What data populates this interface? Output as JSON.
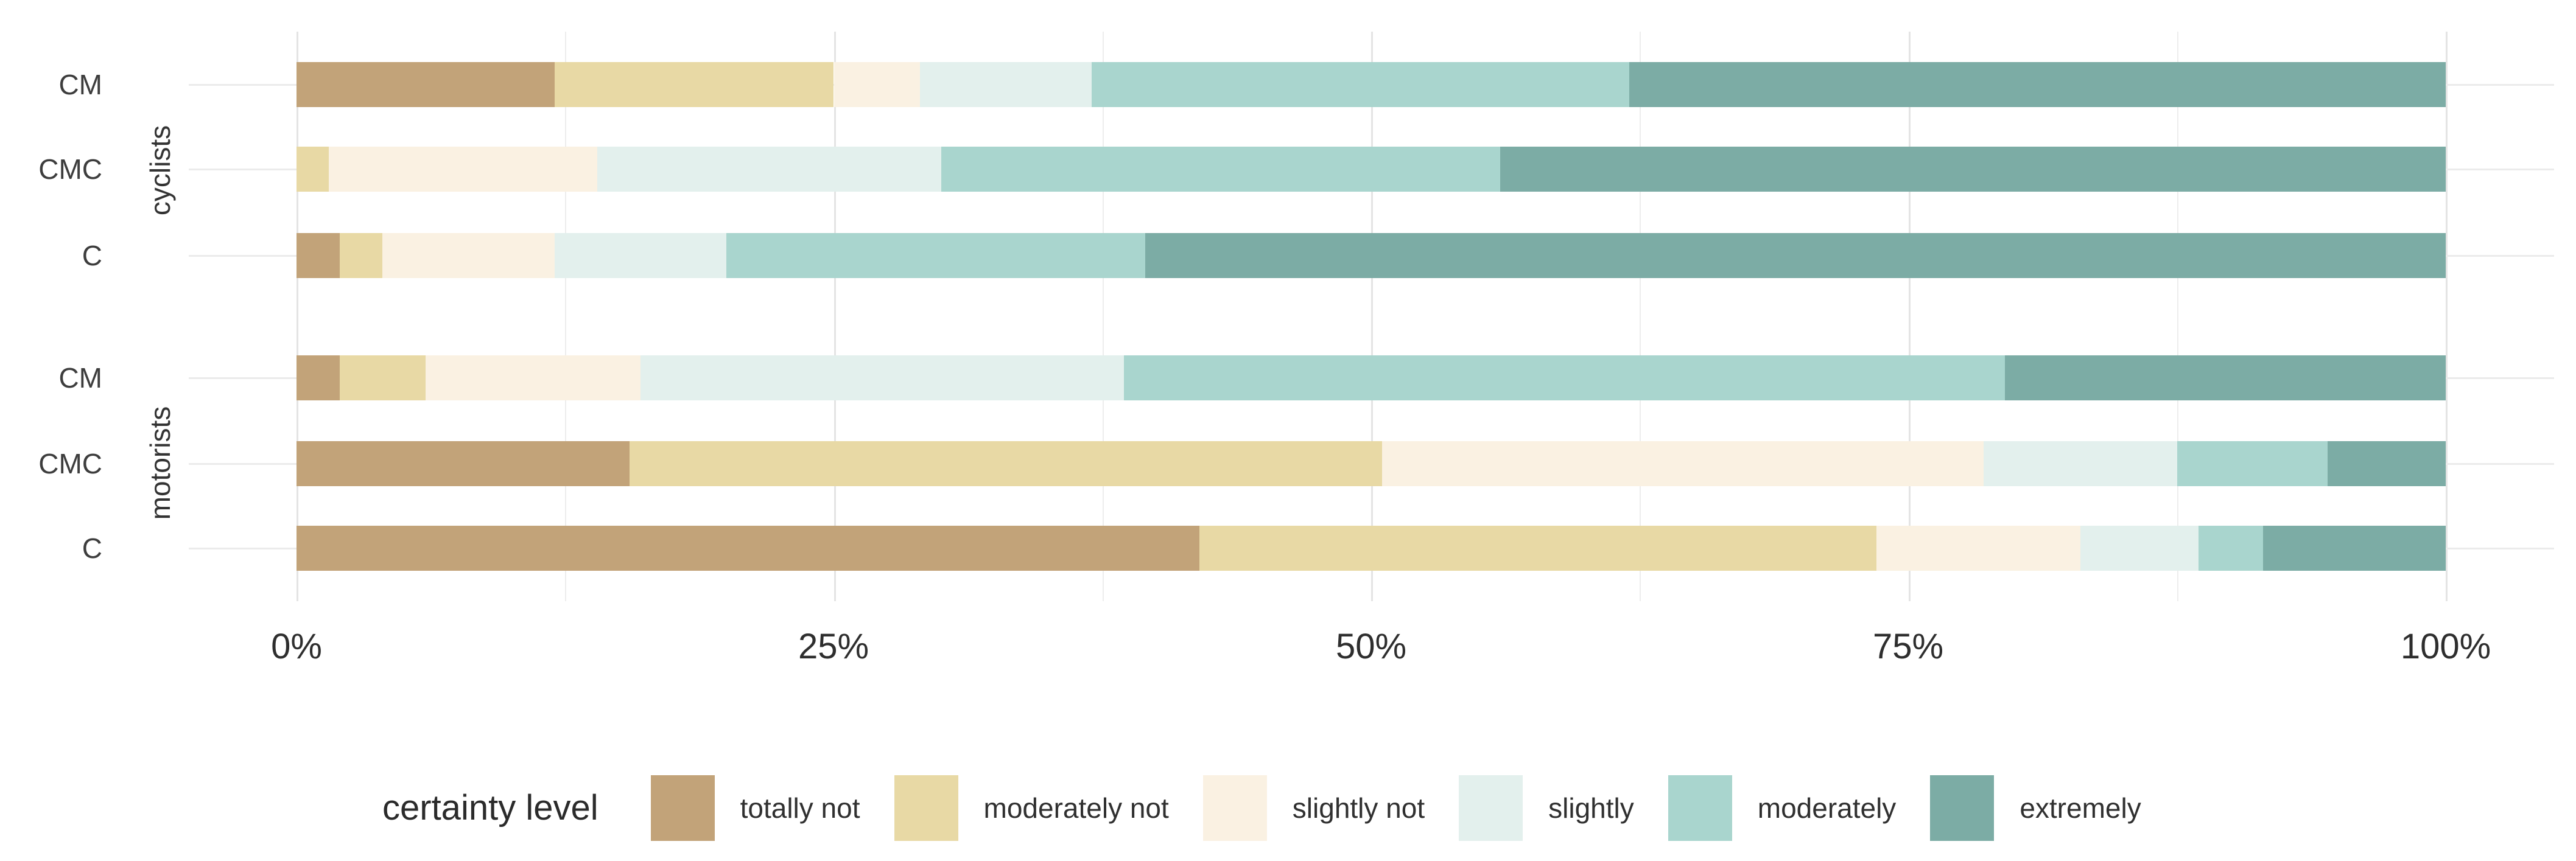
{
  "chart_data": {
    "type": "bar",
    "orientation": "horizontal",
    "stacked": true,
    "unit": "percent",
    "title": "",
    "xlabel": "",
    "ylabel": "",
    "xlim": [
      0,
      100
    ],
    "x_ticks": [
      "0%",
      "25%",
      "50%",
      "75%",
      "100%"
    ],
    "grid": {
      "major": [
        0,
        25,
        50,
        75,
        100
      ],
      "minor": [
        12.5,
        37.5,
        62.5,
        87.5
      ]
    },
    "legend_title": "certainty level",
    "legend_position": "bottom",
    "levels": [
      {
        "name": "totally not",
        "color": "#C2A379"
      },
      {
        "name": "moderately not",
        "color": "#E8D9A5"
      },
      {
        "name": "slightly not",
        "color": "#FAF1E2"
      },
      {
        "name": "slightly",
        "color": "#E3F0ED"
      },
      {
        "name": "moderately",
        "color": "#A9D5CE"
      },
      {
        "name": "extremely",
        "color": "#7CACA5"
      }
    ],
    "groups": [
      {
        "label": "cyclists",
        "rows": [
          {
            "label": "CM",
            "values": [
              12,
              13,
              4,
              8,
              25,
              38
            ]
          },
          {
            "label": "CMC",
            "values": [
              0,
              1.5,
              12.5,
              16,
              26,
              44
            ]
          },
          {
            "label": "C",
            "values": [
              2,
              2,
              8,
              8,
              19.5,
              60.5
            ]
          }
        ]
      },
      {
        "label": "motorists",
        "rows": [
          {
            "label": "CM",
            "values": [
              2,
              4,
              10,
              22.5,
              41,
              20.5
            ]
          },
          {
            "label": "CMC",
            "values": [
              15.5,
              35,
              28,
              9,
              7,
              5.5
            ]
          },
          {
            "label": "C",
            "values": [
              42,
              31.5,
              9.5,
              5.5,
              3,
              8.5
            ]
          }
        ]
      }
    ]
  }
}
